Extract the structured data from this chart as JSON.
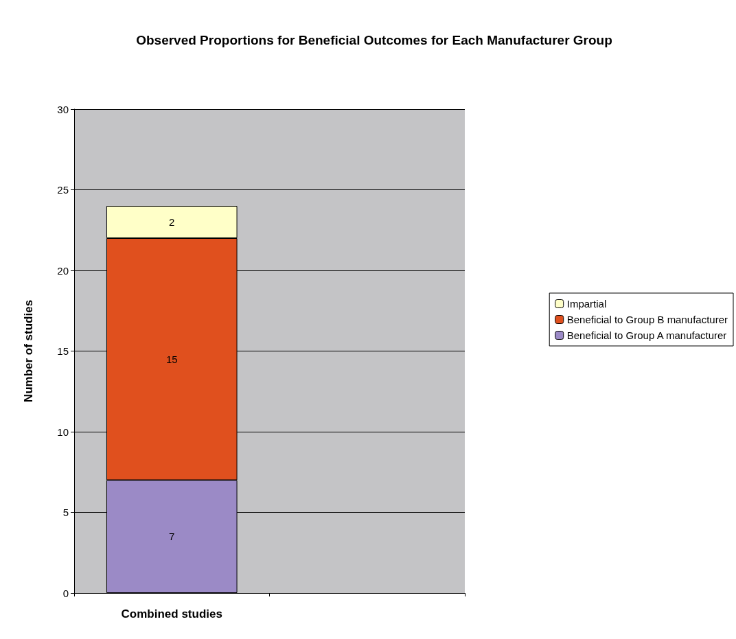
{
  "chart_data": {
    "type": "bar",
    "title": "Observed Proportions for Beneficial Outcomes for Each Manufacturer Group",
    "ylabel": "Number of studies",
    "categories": [
      "Combined studies",
      null
    ],
    "stacked": true,
    "data_labels": true,
    "grid": "y",
    "legend": "right",
    "ylim": [
      0,
      30
    ],
    "yticks": [
      0,
      5,
      10,
      15,
      20,
      25,
      30
    ],
    "series": [
      {
        "name": "Beneficial to Group A manufacturer",
        "color": "#9b8ac6",
        "values": [
          7,
          null
        ]
      },
      {
        "name": "Beneficial to Group B manufacturer",
        "color": "#e0501e",
        "values": [
          15,
          null
        ]
      },
      {
        "name": "Impartial",
        "color": "#ffffc8",
        "values": [
          2,
          null
        ]
      }
    ]
  }
}
